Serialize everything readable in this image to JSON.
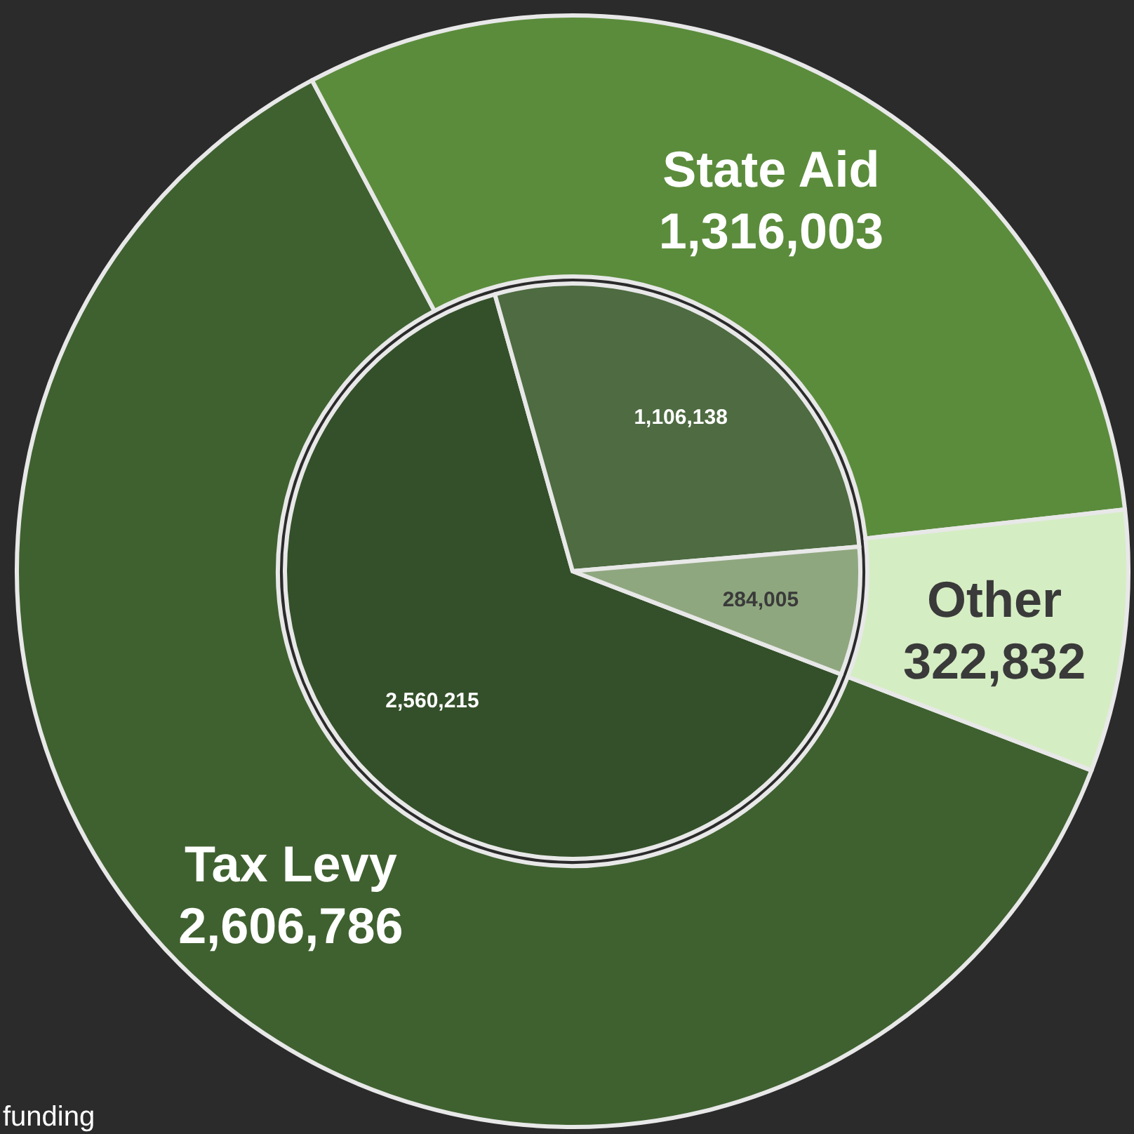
{
  "chart_data": {
    "type": "donut",
    "categories": [
      "Tax Levy",
      "State Aid",
      "Other"
    ],
    "series": [
      {
        "values": [
          2606786,
          1316003,
          322832
        ],
        "colors": [
          "#3f6130",
          "#5b8c3c",
          "#d5edc3"
        ],
        "value_labels": [
          "2,606,786",
          "1,316,003",
          "322,832"
        ]
      },
      {
        "values": [
          2560215,
          1106138,
          284005
        ],
        "colors": [
          "#34502a",
          "#4e6b41",
          "#8fa77f"
        ],
        "value_labels": [
          "2,560,215",
          "1,106,138",
          "284,005"
        ]
      }
    ],
    "annotations": [
      "funding"
    ]
  }
}
